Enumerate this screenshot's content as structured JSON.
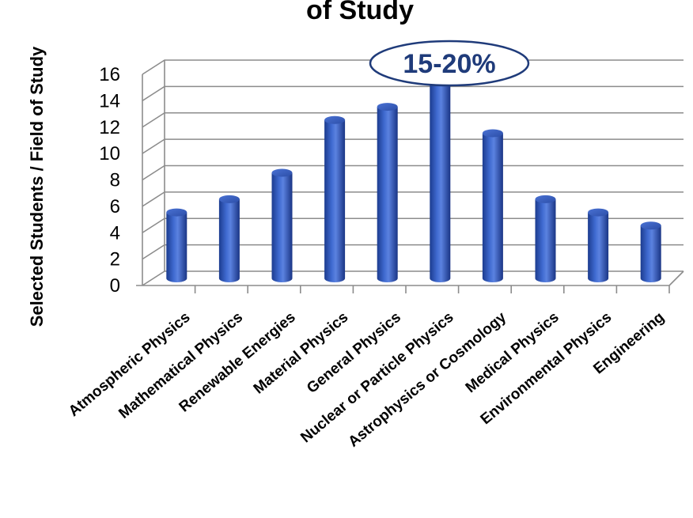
{
  "chart_data": {
    "type": "bar",
    "title": "of Study",
    "ylabel": "Selected Students / Field of Study",
    "xlabel": "",
    "ylim": [
      0,
      16
    ],
    "yticks": [
      "0",
      "2",
      "4",
      "6",
      "8",
      "10",
      "12",
      "14",
      "16"
    ],
    "categories": [
      "Atmospheric Physics",
      "Mathematical Physics",
      "Renewable Energies",
      "Material Physics",
      "General Physics",
      "Nuclear or Particle Physics",
      "Astrophysics or Cosmology",
      "Medical Physics",
      "Environmental Physics",
      "Engineering"
    ],
    "values": [
      5,
      6,
      8,
      12,
      13,
      15,
      11,
      6,
      5,
      4
    ],
    "annotation": "15-20%",
    "grid": true,
    "style": "3d-cylinder",
    "bar_color": "#3a63c2",
    "annotation_color": "#1f3b7a"
  }
}
